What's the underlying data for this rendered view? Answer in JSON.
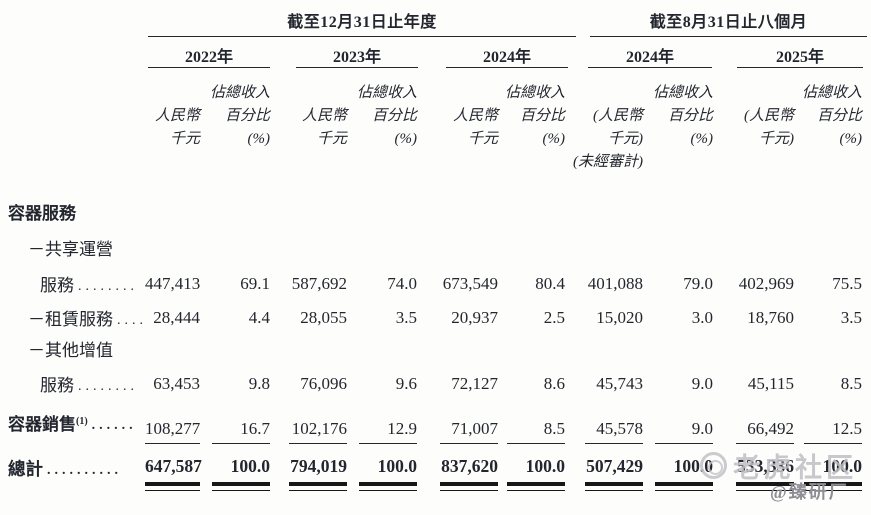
{
  "header": {
    "group_left": {
      "title": "截至12月31日止年度",
      "years": [
        "2022年",
        "2023年",
        "2024年"
      ]
    },
    "group_right": {
      "title": "截至8月31日止八個月",
      "years": [
        "2024年",
        "2025年"
      ]
    },
    "rmb_line1": "人民幣",
    "rmb_line2": "千元",
    "rmb_paren_line1": "(人民幣",
    "rmb_paren_line2": "千元)",
    "unaudited": "(未經審計)",
    "pct_line1": "佔總收入",
    "pct_line2": "百分比",
    "pct_line3": "(%)"
  },
  "rows": [
    {
      "label": "容器服務"
    },
    {
      "label": "－共享運營"
    },
    {
      "label": "服務",
      "leader": "........",
      "values": [
        "447,413",
        "69.1",
        "587,692",
        "74.0",
        "673,549",
        "80.4",
        "401,088",
        "79.0",
        "402,969",
        "75.5"
      ]
    },
    {
      "label": "－租賃服務",
      "leader": "....",
      "values": [
        "28,444",
        "4.4",
        "28,055",
        "3.5",
        "20,937",
        "2.5",
        "15,020",
        "3.0",
        "18,760",
        "3.5"
      ]
    },
    {
      "label": "－其他增值"
    },
    {
      "label": "服務",
      "leader": "........",
      "values": [
        "63,453",
        "9.8",
        "76,096",
        "9.6",
        "72,127",
        "8.6",
        "45,743",
        "9.0",
        "45,115",
        "8.5"
      ]
    },
    {
      "label": "容器銷售",
      "footnote": "(1)",
      "leader": "......",
      "values": [
        "108,277",
        "16.7",
        "102,176",
        "12.9",
        "71,007",
        "8.5",
        "45,578",
        "9.0",
        "66,492",
        "12.5"
      ]
    },
    {
      "label": "總計",
      "leader": "..........",
      "values": [
        "647,587",
        "100.0",
        "794,019",
        "100.0",
        "837,620",
        "100.0",
        "507,429",
        "100.0",
        "533,336",
        "100.0"
      ]
    }
  ],
  "watermark": {
    "community": "老虎社区",
    "handle": "@臻研厂"
  },
  "colors": {
    "text": "#23262e",
    "rule": "#26262a",
    "watermark": "#bfbfc4"
  }
}
